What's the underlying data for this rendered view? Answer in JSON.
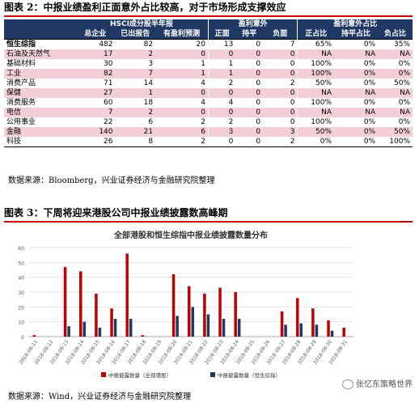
{
  "figure2": {
    "title": "图表 2：中报业绩盈利正面意外占比较高，对于市场形成支撑效应",
    "group_headers": [
      "HSCI成分股半年报",
      "盈利意外",
      "盈利意外占比"
    ],
    "columns": [
      "",
      "总企业",
      "已出报告",
      "有盈利预测",
      "正面",
      "持平",
      "负面",
      "正占比",
      "持平占比",
      "负占比"
    ],
    "rows": [
      [
        "恒生综指",
        "482",
        "82",
        "20",
        "13",
        "0",
        "7",
        "65%",
        "0%",
        "35%"
      ],
      [
        "石油及天然气",
        "17",
        "2",
        "0",
        "0",
        "0",
        "0",
        "NA",
        "NA",
        "NA"
      ],
      [
        "基础材料",
        "30",
        "3",
        "1",
        "1",
        "0",
        "0",
        "100%",
        "0%",
        "0%"
      ],
      [
        "工业",
        "82",
        "7",
        "1",
        "1",
        "0",
        "0",
        "100%",
        "0%",
        "0%"
      ],
      [
        "消费产品",
        "71",
        "14",
        "4",
        "2",
        "0",
        "2",
        "50%",
        "0%",
        "50%"
      ],
      [
        "保健",
        "27",
        "1",
        "0",
        "0",
        "0",
        "0",
        "NA",
        "NA",
        "NA"
      ],
      [
        "消费服务",
        "60",
        "18",
        "4",
        "4",
        "0",
        "0",
        "100%",
        "0%",
        "0%"
      ],
      [
        "电信",
        "7",
        "2",
        "0",
        "0",
        "0",
        "0",
        "NA",
        "NA",
        "NA"
      ],
      [
        "公用事业",
        "22",
        "6",
        "2",
        "2",
        "0",
        "0",
        "100%",
        "0%",
        "0%"
      ],
      [
        "金融",
        "140",
        "21",
        "6",
        "3",
        "0",
        "3",
        "50%",
        "0%",
        "50%"
      ],
      [
        "科技",
        "26",
        "8",
        "2",
        "0",
        "0",
        "2",
        "0%",
        "0%",
        "100%"
      ]
    ],
    "source": "数据来源：Bloomberg，兴业证券经济与金融研究院整理"
  },
  "figure3": {
    "title": "图表 3：下周将迎来港股公司中报业绩披露数高峰期",
    "source": "数据来源：Wind，兴业证券经济与金融研究院整理"
  },
  "watermark": "张忆东策略世界",
  "chart_data": {
    "type": "bar",
    "title": "全部港股和恒生综指中报业绩披露数量分布",
    "categories": [
      "2018-08-11",
      "2018-08-12",
      "2018-08-13",
      "2018-08-14",
      "2018-08-15",
      "2018-08-16",
      "2018-08-17",
      "2018-08-18",
      "2018-08-19",
      "2018-08-20",
      "2018-08-21",
      "2018-08-22",
      "2018-08-23",
      "2018-08-24",
      "2018-08-25",
      "2018-08-26",
      "2018-08-27",
      "2018-08-28",
      "2018-08-29",
      "2018-08-30",
      "2018-08-31"
    ],
    "series": [
      {
        "name": "中报披露数量（全部港股）",
        "color": "#c00000",
        "values": [
          1,
          0,
          47,
          44,
          29,
          19,
          56,
          1,
          0,
          42,
          34,
          29,
          33,
          30,
          0,
          0,
          17,
          26,
          19,
          11,
          6
        ]
      },
      {
        "name": "中报披露数量（恒生综指）",
        "color": "#1f3864",
        "values": [
          0,
          0,
          7,
          10,
          6,
          12,
          12,
          0,
          0,
          14,
          20,
          15,
          12,
          12,
          0,
          0,
          8,
          9,
          8,
          4,
          0
        ]
      }
    ],
    "ylim": [
      0,
      60
    ],
    "yticks": [
      0,
      10,
      20,
      30,
      40,
      50,
      60
    ],
    "grid": true,
    "legend": "bottom"
  }
}
